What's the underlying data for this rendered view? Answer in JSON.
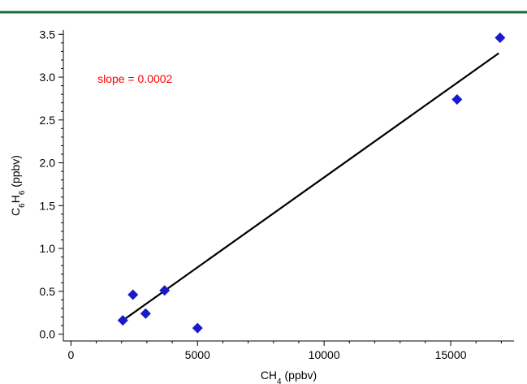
{
  "page": {
    "top_rule_color": "#1f6b3a"
  },
  "chart_data": {
    "type": "scatter",
    "title": "",
    "xlabel": {
      "base": "CH",
      "subscript": "4",
      "suffix": " (ppbv)"
    },
    "ylabel": {
      "part1": "C",
      "sub1": "6",
      "part2": "H",
      "sub2": "6",
      "suffix": " (ppbv)"
    },
    "xlim": [
      -300,
      17500
    ],
    "ylim": [
      -0.08,
      3.55
    ],
    "x_ticks": [
      0,
      5000,
      10000,
      15000
    ],
    "x_tick_labels": [
      "0",
      "5000",
      "10000",
      "15000"
    ],
    "y_ticks": [
      0.0,
      0.5,
      1.0,
      1.5,
      2.0,
      2.5,
      3.0,
      3.5
    ],
    "y_tick_labels": [
      "0.0",
      "0.5",
      "1.0",
      "1.5",
      "2.0",
      "2.5",
      "3.0",
      "3.5"
    ],
    "grid": false,
    "marker_color": "#1a1acc",
    "fit_line_color": "#000000",
    "series": [
      {
        "points": [
          {
            "x": 2050,
            "y": 0.16
          },
          {
            "x": 2450,
            "y": 0.46
          },
          {
            "x": 2950,
            "y": 0.24
          },
          {
            "x": 3700,
            "y": 0.51
          },
          {
            "x": 5000,
            "y": 0.07
          },
          {
            "x": 15250,
            "y": 2.74
          },
          {
            "x": 16950,
            "y": 3.46
          }
        ]
      }
    ],
    "fit_line": {
      "x": [
        2050,
        16900
      ],
      "y": [
        0.16,
        3.28
      ]
    },
    "annotation": {
      "text": "slope = 0.0002",
      "x": 1050,
      "y": 2.98,
      "color": "#ff0000"
    }
  }
}
